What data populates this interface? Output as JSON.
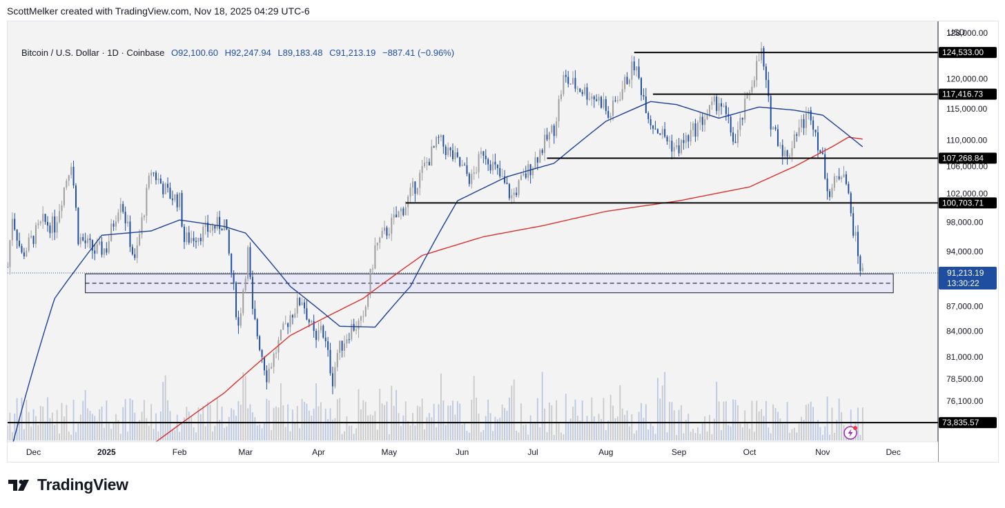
{
  "credit": "ScottMelker created with TradingView.com, Nov 18, 2025 04:29 UTC-6",
  "legend": {
    "symbol": "Bitcoin / U.S. Dollar · 1D · Coinbase",
    "open": "O92,100.60",
    "high": "H92,247.94",
    "low": "L89,183.48",
    "close": "C91,213.19",
    "change": "−887.41 (−0.96%)"
  },
  "currency": "USD",
  "brand": "TradingView",
  "colors": {
    "bull": "#9e9e9e",
    "bear": "#1f4ea1",
    "ma_fast": "#1b3f96",
    "ma_slow": "#d7302b",
    "zone_fill": "#e8e8f6",
    "level_line": "#000000",
    "current_price_tag": "#1f4ea1"
  },
  "chart_data": {
    "type": "candlestick",
    "symbol": "Bitcoin / U.S. Dollar",
    "interval": "1D",
    "exchange": "Coinbase",
    "y_scale": "log",
    "x_range": [
      "2024-11-20",
      "2025-12-20"
    ],
    "y_range": [
      72000,
      129500
    ],
    "x_tick_labels": [
      {
        "date": "2024-12-01",
        "label": "Dec"
      },
      {
        "date": "2025-01-01",
        "label": "2025"
      },
      {
        "date": "2025-02-01",
        "label": "Feb"
      },
      {
        "date": "2025-03-01",
        "label": "Mar"
      },
      {
        "date": "2025-04-01",
        "label": "Apr"
      },
      {
        "date": "2025-05-01",
        "label": "May"
      },
      {
        "date": "2025-06-01",
        "label": "Jun"
      },
      {
        "date": "2025-07-01",
        "label": "Jul"
      },
      {
        "date": "2025-08-01",
        "label": "Aug"
      },
      {
        "date": "2025-09-01",
        "label": "Sep"
      },
      {
        "date": "2025-10-01",
        "label": "Oct"
      },
      {
        "date": "2025-11-01",
        "label": "Nov"
      },
      {
        "date": "2025-12-01",
        "label": "Dec"
      }
    ],
    "y_tick_labels": [
      {
        "value": 128000,
        "label": "128,000.00"
      },
      {
        "value": 120000,
        "label": "120,000.00"
      },
      {
        "value": 115000,
        "label": "115,000.00"
      },
      {
        "value": 110000,
        "label": "110,000.00"
      },
      {
        "value": 106000,
        "label": "106,000.00"
      },
      {
        "value": 102000,
        "label": "102,000.00"
      },
      {
        "value": 98000,
        "label": "98,000.00"
      },
      {
        "value": 94000,
        "label": "94,000.00"
      },
      {
        "value": 87000,
        "label": "87,000.00"
      },
      {
        "value": 84000,
        "label": "84,000.00"
      },
      {
        "value": 81000,
        "label": "81,000.00"
      },
      {
        "value": 78500,
        "label": "78,500.00"
      },
      {
        "value": 76100,
        "label": "76,100.00"
      }
    ],
    "close_path": [
      [
        "2024-11-20",
        92000
      ],
      [
        "2024-11-22",
        99000
      ],
      [
        "2024-11-26",
        93500
      ],
      [
        "2024-12-05",
        98000
      ],
      [
        "2024-12-10",
        97500
      ],
      [
        "2024-12-17",
        107000
      ],
      [
        "2024-12-20",
        96000
      ],
      [
        "2024-12-27",
        94000
      ],
      [
        "2025-01-01",
        94500
      ],
      [
        "2025-01-07",
        101500
      ],
      [
        "2025-01-13",
        92500
      ],
      [
        "2025-01-20",
        105500
      ],
      [
        "2025-01-27",
        102000
      ],
      [
        "2025-02-01",
        101000
      ],
      [
        "2025-02-03",
        95500
      ],
      [
        "2025-02-20",
        98000
      ],
      [
        "2025-02-26",
        84500
      ],
      [
        "2025-03-02",
        94000
      ],
      [
        "2025-03-04",
        86000
      ],
      [
        "2025-03-10",
        79000
      ],
      [
        "2025-03-20",
        86000
      ],
      [
        "2025-03-25",
        88000
      ],
      [
        "2025-03-31",
        82500
      ],
      [
        "2025-04-02",
        85000
      ],
      [
        "2025-04-07",
        78500
      ],
      [
        "2025-04-09",
        81500
      ],
      [
        "2025-04-15",
        84500
      ],
      [
        "2025-04-20",
        85000
      ],
      [
        "2025-04-25",
        94500
      ],
      [
        "2025-05-08",
        100500
      ],
      [
        "2025-05-22",
        110000
      ],
      [
        "2025-06-05",
        104000
      ],
      [
        "2025-06-10",
        108500
      ],
      [
        "2025-06-22",
        101500
      ],
      [
        "2025-07-01",
        106500
      ],
      [
        "2025-07-10",
        112000
      ],
      [
        "2025-07-14",
        120000
      ],
      [
        "2025-07-31",
        116000
      ],
      [
        "2025-08-02",
        113500
      ],
      [
        "2025-08-13",
        122500
      ],
      [
        "2025-08-20",
        113000
      ],
      [
        "2025-08-31",
        108500
      ],
      [
        "2025-09-05",
        110500
      ],
      [
        "2025-09-18",
        116500
      ],
      [
        "2025-09-25",
        109500
      ],
      [
        "2025-10-03",
        121000
      ],
      [
        "2025-10-06",
        124500
      ],
      [
        "2025-10-10",
        113000
      ],
      [
        "2025-10-17",
        107000
      ],
      [
        "2025-10-20",
        111000
      ],
      [
        "2025-10-27",
        114500
      ],
      [
        "2025-11-04",
        102000
      ],
      [
        "2025-11-06",
        103500
      ],
      [
        "2025-11-10",
        106000
      ],
      [
        "2025-11-13",
        99000
      ],
      [
        "2025-11-17",
        92000
      ],
      [
        "2025-11-18",
        91213.19
      ]
    ],
    "moving_average_fast": [
      [
        "2024-11-22",
        71500
      ],
      [
        "2024-12-10",
        88000
      ],
      [
        "2024-12-30",
        96200
      ],
      [
        "2025-01-20",
        96800
      ],
      [
        "2025-02-01",
        98300
      ],
      [
        "2025-02-20",
        97400
      ],
      [
        "2025-03-01",
        96500
      ],
      [
        "2025-03-20",
        89500
      ],
      [
        "2025-04-10",
        84600
      ],
      [
        "2025-04-25",
        84500
      ],
      [
        "2025-05-10",
        89500
      ],
      [
        "2025-05-30",
        101000
      ],
      [
        "2025-06-20",
        104500
      ],
      [
        "2025-07-10",
        106500
      ],
      [
        "2025-08-01",
        113000
      ],
      [
        "2025-08-20",
        116200
      ],
      [
        "2025-08-31",
        115700
      ],
      [
        "2025-09-18",
        113500
      ],
      [
        "2025-10-05",
        115300
      ],
      [
        "2025-10-20",
        114800
      ],
      [
        "2025-11-01",
        114000
      ],
      [
        "2025-11-18",
        109000
      ]
    ],
    "moving_average_slow": [
      [
        "2025-01-20",
        71500
      ],
      [
        "2025-02-20",
        77000
      ],
      [
        "2025-03-20",
        83500
      ],
      [
        "2025-04-20",
        88000
      ],
      [
        "2025-05-15",
        93500
      ],
      [
        "2025-06-10",
        96000
      ],
      [
        "2025-07-05",
        97500
      ],
      [
        "2025-08-01",
        99500
      ],
      [
        "2025-09-01",
        101000
      ],
      [
        "2025-10-01",
        103000
      ],
      [
        "2025-10-20",
        106000
      ],
      [
        "2025-11-05",
        109000
      ],
      [
        "2025-11-12",
        110500
      ],
      [
        "2025-11-18",
        110200
      ]
    ],
    "horizontal_levels": [
      {
        "value": 124533.0,
        "label": "124,533.00",
        "from": "2025-08-13"
      },
      {
        "value": 117416.73,
        "label": "117,416.73",
        "from": "2025-08-21"
      },
      {
        "value": 107268.84,
        "label": "107,268.84",
        "from": "2025-07-07"
      },
      {
        "value": 100703.71,
        "label": "100,703.71",
        "from": "2025-05-08"
      },
      {
        "value": 73835.57,
        "label": "73,835.57",
        "from": "2024-11-20"
      }
    ],
    "support_zone": {
      "from": "2024-12-23",
      "to": "2025-12-01",
      "top": 91100,
      "mid": 89900,
      "bottom": 88700
    },
    "current_price": {
      "value": 91213.19,
      "label": "91,213.19",
      "countdown": "13:30:22"
    },
    "volume": "present, values not printed"
  }
}
